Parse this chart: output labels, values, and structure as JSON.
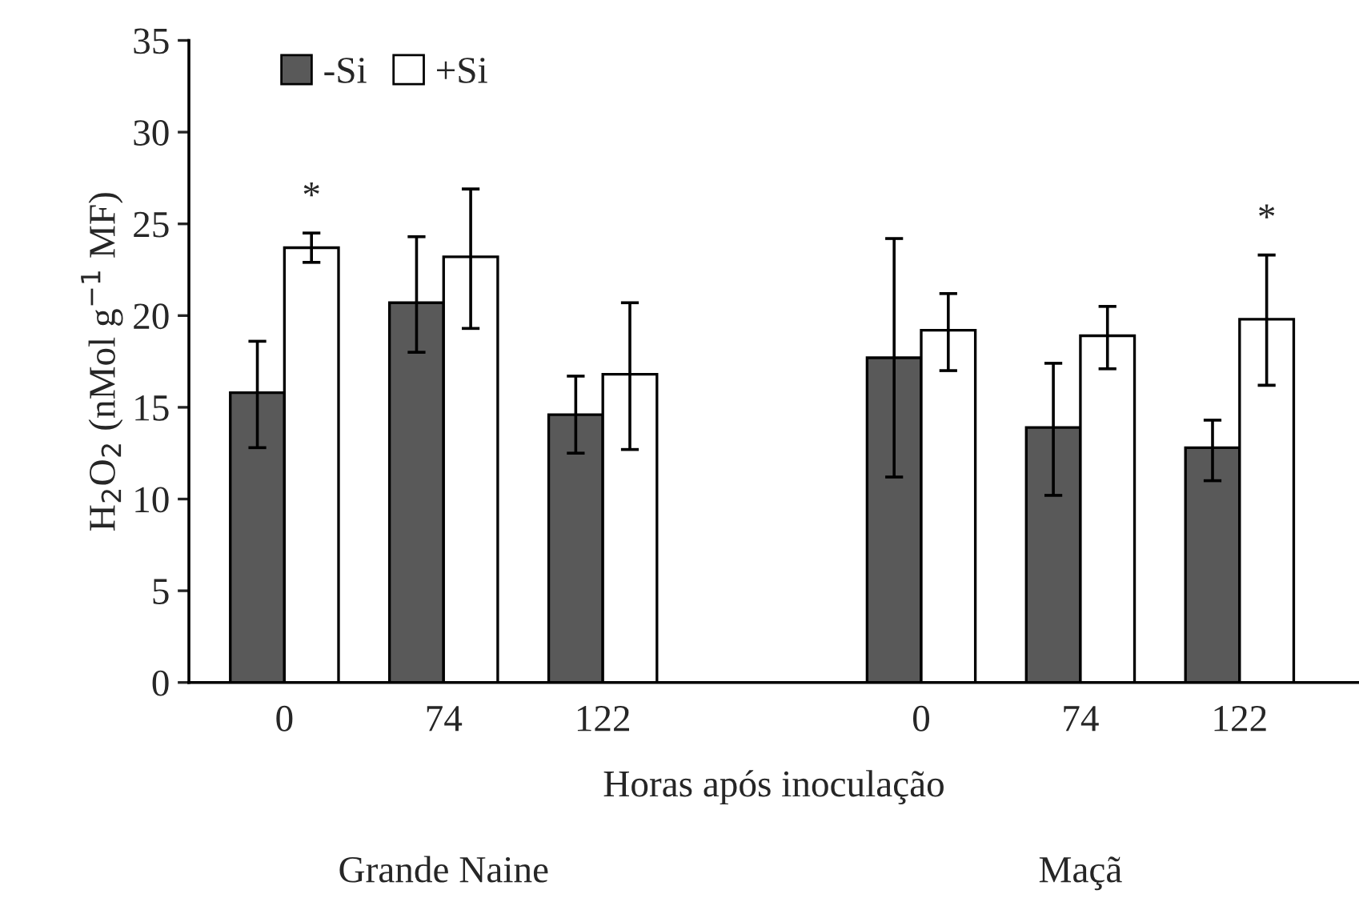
{
  "chart_data": {
    "type": "bar",
    "xlabel": "Horas após inoculação",
    "ylabel": "H$_{2}$O$_{2}$ (nMol g$^{−1}$ MF)",
    "categories": [
      "0",
      "74",
      "122",
      null,
      "0",
      "74",
      "122"
    ],
    "series": [
      {
        "name": "-Si",
        "color": "#595959",
        "values": [
          15.8,
          20.7,
          14.6,
          null,
          17.7,
          13.9,
          12.8
        ],
        "errors": [
          [
            12.8,
            18.6
          ],
          [
            18.0,
            24.3
          ],
          [
            12.5,
            16.7
          ],
          null,
          [
            11.2,
            24.2
          ],
          [
            10.2,
            17.4
          ],
          [
            11.0,
            14.3
          ]
        ]
      },
      {
        "name": "+Si",
        "color": "#ffffff",
        "values": [
          23.7,
          23.2,
          16.8,
          null,
          19.2,
          18.9,
          19.8
        ],
        "value_labels": [
          "*",
          null,
          null,
          null,
          null,
          null,
          "*"
        ],
        "errors": [
          [
            22.9,
            24.5
          ],
          [
            19.3,
            26.9
          ],
          [
            12.7,
            20.7
          ],
          null,
          [
            17.0,
            21.2
          ],
          [
            17.1,
            20.5
          ],
          [
            16.2,
            23.3
          ]
        ]
      }
    ],
    "ylim": [
      0,
      35
    ],
    "yticks": [
      0,
      5,
      10,
      15,
      20,
      25,
      30,
      35
    ],
    "grid": false,
    "legend": "top left",
    "annotations": [
      "Grande Naine",
      "Maçã"
    ]
  }
}
